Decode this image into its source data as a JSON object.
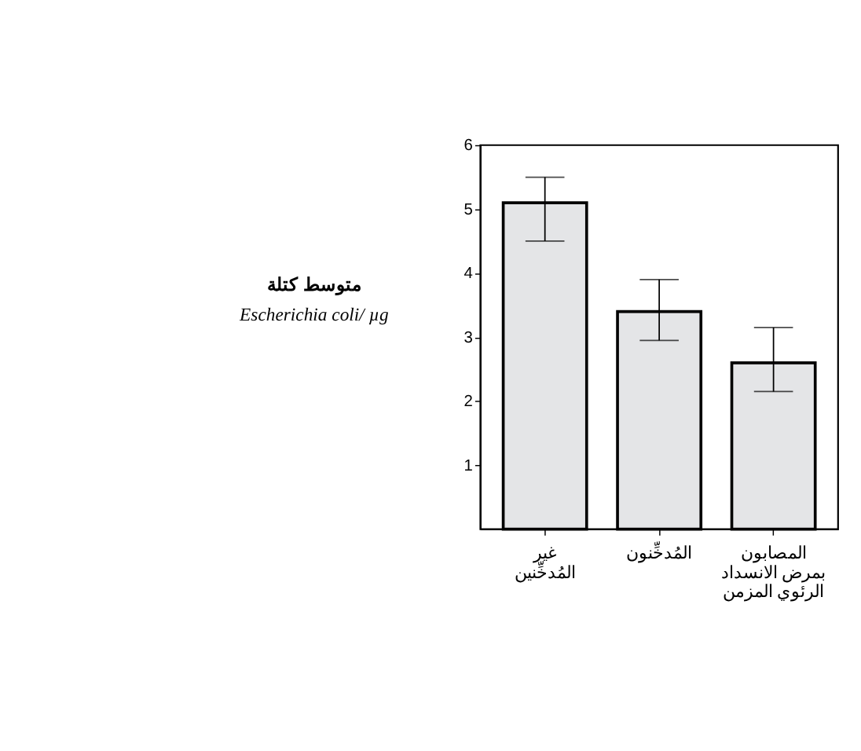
{
  "chart_data": {
    "type": "bar",
    "ylabel": "متوسط كتلة\nEscherichia coli/ µg",
    "categories": [
      "غير\nالمُدخِّنين",
      "المُدخِّنون",
      "المصابون\nبمرض الانسداد\nالرئوي المزمن"
    ],
    "values": [
      5.1,
      3.4,
      2.6
    ],
    "errors": [
      [
        4.5,
        5.5
      ],
      [
        2.95,
        3.9
      ],
      [
        2.15,
        3.15
      ]
    ],
    "color": "#e4e5e7",
    "ylim": [
      0,
      6
    ],
    "yticks": [
      1,
      2,
      3,
      4,
      5,
      6
    ],
    "grid": false
  }
}
